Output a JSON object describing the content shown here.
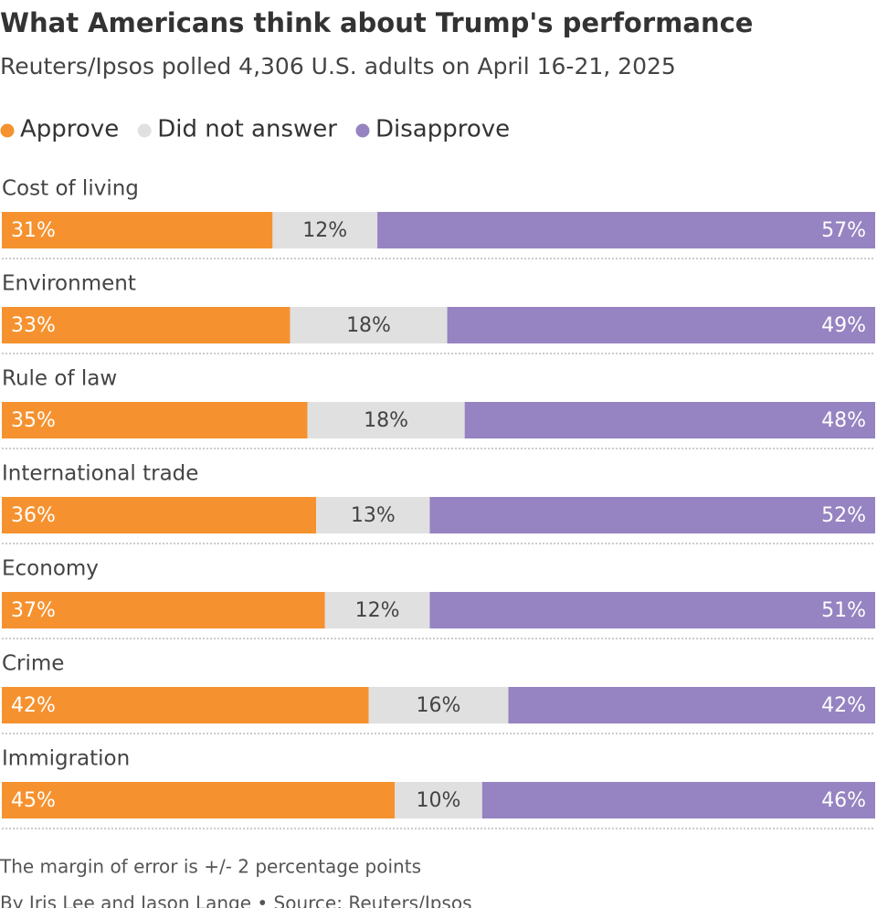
{
  "chart_data": {
    "type": "stacked-bar-horizontal",
    "title": "What Americans think about Trump's performance",
    "subtitle": "Reuters/Ipsos polled 4,306 U.S. adults on April 16-21, 2025",
    "categories": [
      "Cost of living",
      "Environment",
      "Rule of law",
      "International trade",
      "Economy",
      "Crime",
      "Immigration"
    ],
    "xlim": [
      0,
      100
    ],
    "series": [
      {
        "name": "Approve",
        "color": "#f5922f",
        "values": [
          31,
          33,
          35,
          36,
          37,
          42,
          45
        ],
        "value_labels": [
          "31%",
          "33%",
          "35%",
          "36%",
          "37%",
          "42%",
          "45%"
        ]
      },
      {
        "name": "Did not answer",
        "color": "#e0e0e0",
        "values": [
          12,
          18,
          18,
          13,
          12,
          16,
          10
        ],
        "value_labels": [
          "12%",
          "18%",
          "18%",
          "13%",
          "12%",
          "16%",
          "10%"
        ]
      },
      {
        "name": "Disapprove",
        "color": "#9683c1",
        "values": [
          57,
          49,
          48,
          52,
          51,
          42,
          46
        ],
        "value_labels": [
          "57%",
          "49%",
          "48%",
          "52%",
          "51%",
          "42%",
          "46%"
        ]
      }
    ],
    "note": "The margin of error is +/- 2 percentage points",
    "byline": "By Iris Lee and Jason Lange • Source: Reuters/Ipsos"
  }
}
